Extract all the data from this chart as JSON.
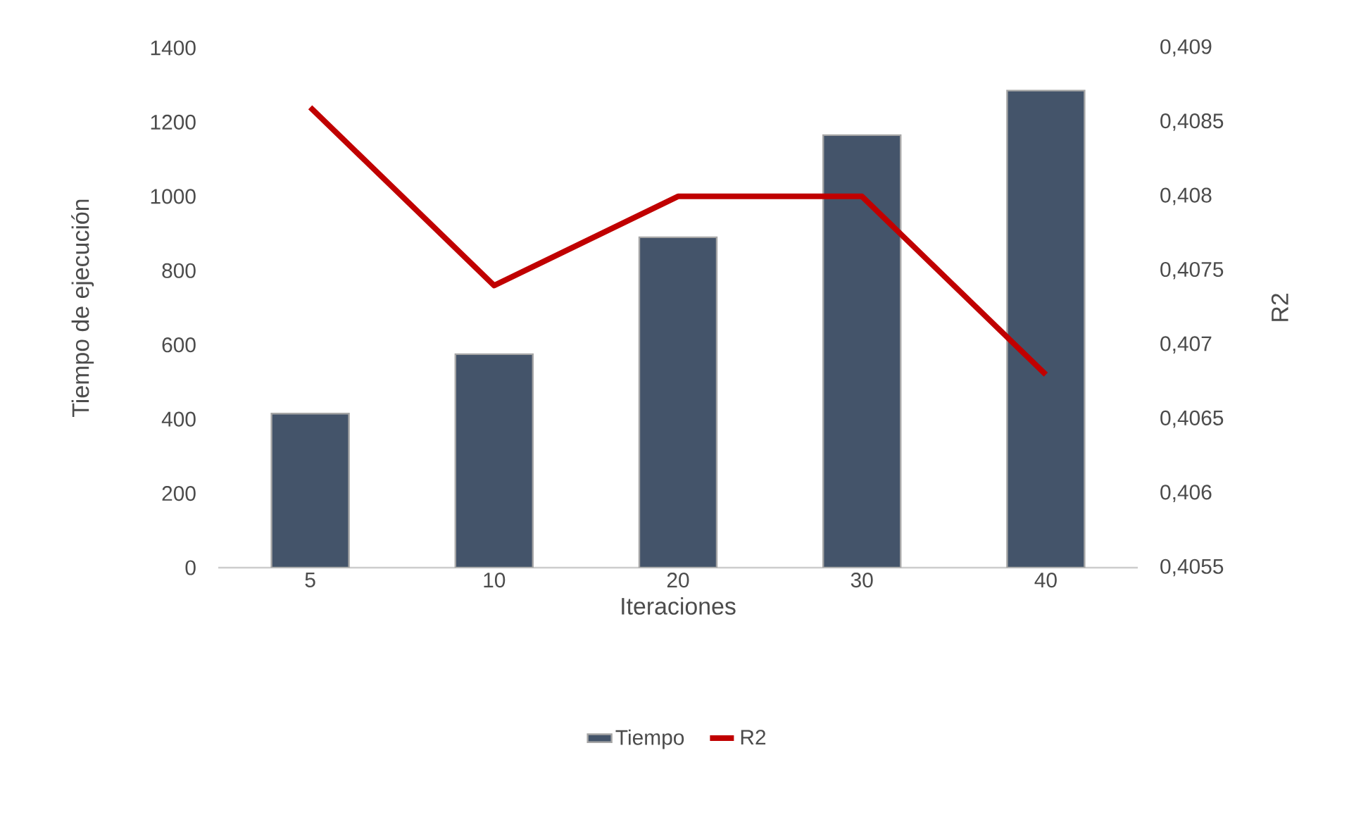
{
  "chart_data": {
    "type": "bar",
    "xlabel": "Iteraciones",
    "ylabel": "Tiempo de ejecución",
    "y2label": "R2",
    "categories": [
      "5",
      "10",
      "20",
      "30",
      "40"
    ],
    "series": [
      {
        "name": "Tiempo",
        "color": "#44546a",
        "values": [
          415,
          575,
          890,
          1165,
          1285
        ]
      },
      {
        "name": "R2",
        "type": "line",
        "axis": "y2",
        "color": "#c00000",
        "values": [
          0.4086,
          0.4074,
          0.408,
          0.408,
          0.4068
        ]
      }
    ],
    "ylim": [
      0,
      1400
    ],
    "yticks": [
      0,
      200,
      400,
      600,
      800,
      1000,
      1200,
      1400
    ],
    "y2lim": [
      0.4055,
      0.409
    ],
    "y2ticks": [
      {
        "value": 0.4055,
        "label": "0,4055"
      },
      {
        "value": 0.406,
        "label": "0,406"
      },
      {
        "value": 0.4065,
        "label": "0,4065"
      },
      {
        "value": 0.407,
        "label": "0,407"
      },
      {
        "value": 0.4075,
        "label": "0,4075"
      },
      {
        "value": 0.408,
        "label": "0,408"
      },
      {
        "value": 0.4085,
        "label": "0,4085"
      },
      {
        "value": 0.409,
        "label": "0,409"
      }
    ],
    "legend": "bottom"
  }
}
